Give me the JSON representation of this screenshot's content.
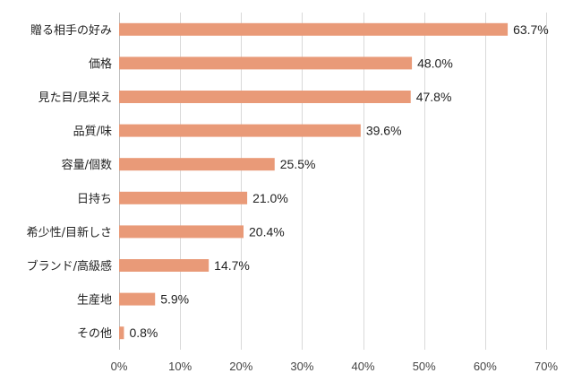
{
  "chart_data": {
    "type": "bar",
    "orientation": "horizontal",
    "title": "",
    "xlabel": "",
    "ylabel": "",
    "categories": [
      "贈る相手の好み",
      "価格",
      "見た目/見栄え",
      "品質/味",
      "容量/個数",
      "日持ち",
      "希少性/目新しさ",
      "ブランド/高級感",
      "生産地",
      "その他"
    ],
    "values": [
      63.7,
      48.0,
      47.8,
      39.6,
      25.5,
      21.0,
      20.4,
      14.7,
      5.9,
      0.8
    ],
    "value_labels": [
      "63.7%",
      "48.0%",
      "47.8%",
      "39.6%",
      "25.5%",
      "21.0%",
      "20.4%",
      "14.7%",
      "5.9%",
      "0.8%"
    ],
    "xlim": [
      0,
      70
    ],
    "x_ticks": [
      0,
      10,
      20,
      30,
      40,
      50,
      60,
      70
    ],
    "x_tick_labels": [
      "0%",
      "10%",
      "20%",
      "30%",
      "40%",
      "50%",
      "60%",
      "70%"
    ],
    "grid": "vertical",
    "legend": "none",
    "bar_color": "#E99A78"
  }
}
